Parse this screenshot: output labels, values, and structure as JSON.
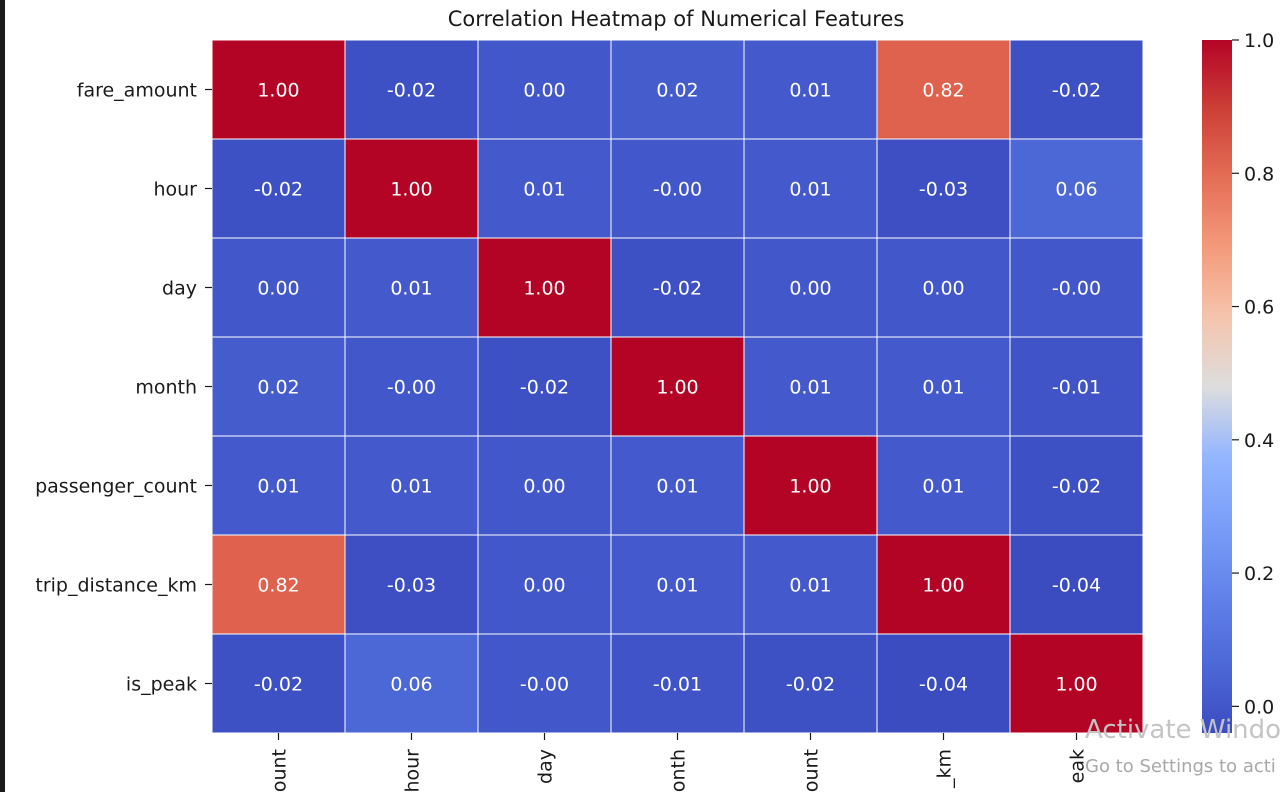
{
  "chart_data": {
    "type": "heatmap",
    "title": "Correlation Heatmap of Numerical Features",
    "row_labels": [
      "fare_amount",
      "hour",
      "day",
      "month",
      "passenger_count",
      "trip_distance_km",
      "is_peak"
    ],
    "col_labels": [
      "ount",
      "hour",
      "day",
      "onth",
      "ount",
      "_km",
      "eak"
    ],
    "values": [
      [
        1.0,
        -0.02,
        0.0,
        0.02,
        0.01,
        0.82,
        -0.02
      ],
      [
        -0.02,
        1.0,
        0.01,
        -0.0,
        0.01,
        -0.03,
        0.06
      ],
      [
        0.0,
        0.01,
        1.0,
        -0.02,
        0.0,
        0.0,
        -0.0
      ],
      [
        0.02,
        -0.0,
        -0.02,
        1.0,
        0.01,
        0.01,
        -0.01
      ],
      [
        0.01,
        0.01,
        0.0,
        0.01,
        1.0,
        0.01,
        -0.02
      ],
      [
        0.82,
        -0.03,
        0.0,
        0.01,
        0.01,
        1.0,
        -0.04
      ],
      [
        -0.02,
        0.06,
        -0.0,
        -0.01,
        -0.02,
        -0.04,
        1.0
      ]
    ],
    "cell_labels": [
      [
        "1.00",
        "-0.02",
        "0.00",
        "0.02",
        "0.01",
        "0.82",
        "-0.02"
      ],
      [
        "-0.02",
        "1.00",
        "0.01",
        "-0.00",
        "0.01",
        "-0.03",
        "0.06"
      ],
      [
        "0.00",
        "0.01",
        "1.00",
        "-0.02",
        "0.00",
        "0.00",
        "-0.00"
      ],
      [
        "0.02",
        "-0.00",
        "-0.02",
        "1.00",
        "0.01",
        "0.01",
        "-0.01"
      ],
      [
        "0.01",
        "0.01",
        "0.00",
        "0.01",
        "1.00",
        "0.01",
        "-0.02"
      ],
      [
        "0.82",
        "-0.03",
        "0.00",
        "0.01",
        "0.01",
        "1.00",
        "-0.04"
      ],
      [
        "-0.02",
        "0.06",
        "-0.00",
        "-0.01",
        "-0.02",
        "-0.04",
        "1.00"
      ]
    ],
    "colormap": "coolwarm",
    "vmin": -0.04,
    "vmax": 1.0,
    "colorbar_ticks": [
      0.0,
      0.2,
      0.4,
      0.6,
      0.8,
      1.0
    ],
    "colorbar_tick_labels": [
      "0.0",
      "0.2",
      "0.4",
      "0.6",
      "0.8",
      "1.0"
    ],
    "grid": true,
    "grid_color": "#ffffff"
  },
  "watermark": {
    "title": "Activate Windo",
    "subtitle": "Go to Settings to acti"
  }
}
